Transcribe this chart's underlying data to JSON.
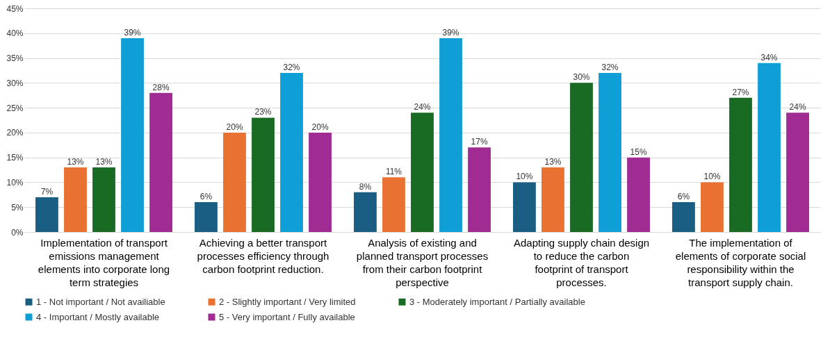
{
  "chart_data": {
    "type": "bar",
    "categories": [
      "Implementation of transport emissions management elements into corporate long term strategies",
      "Achieving a better transport processes efficiency through carbon footprint reduction.",
      "Analysis of existing and planned transport processes from their carbon footprint perspective",
      "Adapting supply chain design to reduce the carbon footprint of transport processes.",
      "The implementation of elements of corporate social responsibility within the transport supply chain."
    ],
    "series": [
      {
        "name": "1 - Not important / Not availiable",
        "color": "#1b5e84",
        "values": [
          7,
          6,
          8,
          10,
          6
        ],
        "value_labels": [
          "7%",
          "6%",
          "8%",
          "10%",
          "6%"
        ]
      },
      {
        "name": "2 - Slightly important / Very limited",
        "color": "#e97132",
        "values": [
          13,
          20,
          11,
          13,
          10
        ],
        "value_labels": [
          "13%",
          "20%",
          "11%",
          "13%",
          "10%"
        ]
      },
      {
        "name": "3 - Moderately important / Partially available",
        "color": "#196b24",
        "values": [
          13,
          23,
          24,
          30,
          27
        ],
        "value_labels": [
          "13%",
          "23%",
          "24%",
          "30%",
          "27%"
        ]
      },
      {
        "name": "4 - Important / Mostly available",
        "color": "#0f9ed5",
        "values": [
          39,
          32,
          39,
          32,
          34
        ],
        "value_labels": [
          "39%",
          "32%",
          "39%",
          "32%",
          "34%"
        ]
      },
      {
        "name": "5 - Very important / Fully available",
        "color": "#a02b93",
        "values": [
          28,
          20,
          17,
          15,
          24
        ],
        "value_labels": [
          "28%",
          "20%",
          "17%",
          "15%",
          "24%"
        ]
      }
    ],
    "ylim": [
      0,
      45
    ],
    "yticks": [
      {
        "value": 0,
        "label": "0%"
      },
      {
        "value": 5,
        "label": "5%"
      },
      {
        "value": 10,
        "label": "10%"
      },
      {
        "value": 15,
        "label": "15%"
      },
      {
        "value": 20,
        "label": "20%"
      },
      {
        "value": 25,
        "label": "25%"
      },
      {
        "value": 30,
        "label": "30%"
      },
      {
        "value": 35,
        "label": "35%"
      },
      {
        "value": 40,
        "label": "40%"
      },
      {
        "value": 45,
        "label": "45%"
      }
    ],
    "grid": "y",
    "legend": "bottom"
  }
}
